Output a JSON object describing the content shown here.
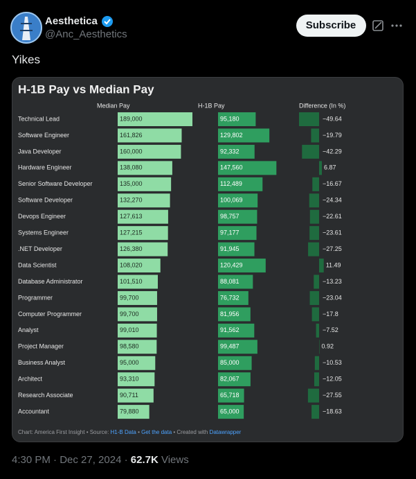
{
  "tweet": {
    "author_name": "Aesthetica",
    "handle": "@Anc_Aesthetics",
    "subscribe": "Subscribe",
    "text": "Yikes",
    "timestamp": "4:30 PM · Dec 27, 2024",
    "separator": " · ",
    "views": "62.7K",
    "views_label": " Views"
  },
  "chart_data": {
    "type": "bar",
    "title": "H-1B Pay vs Median Pay",
    "categories": [
      "Technical Lead",
      "Software Engineer",
      "Java Developer",
      "Hardware Engineer",
      "Senior Software Developer",
      "Software Developer",
      "Devops Engineer",
      "Systems Engineer",
      ".NET Developer",
      "Data Scientist",
      "Database Administrator",
      "Programmer",
      "Computer Programmer",
      "Analyst",
      "Project Manager",
      "Business Analyst",
      "Architect",
      "Research Associate",
      "Accountant"
    ],
    "series": [
      {
        "name": "Median Pay",
        "color": "#8fdca5",
        "values": [
          189000,
          161826,
          160000,
          138080,
          135000,
          132270,
          127613,
          127215,
          126380,
          108020,
          101510,
          99700,
          99700,
          99010,
          98580,
          95000,
          93310,
          90711,
          79880
        ],
        "value_labels": [
          "189,000",
          "161,826",
          "160,000",
          "138,080",
          "135,000",
          "132,270",
          "127,613",
          "127,215",
          "126,380",
          "108,020",
          "101,510",
          "99,700",
          "99,700",
          "99,010",
          "98,580",
          "95,000",
          "93,310",
          "90,711",
          "79,880"
        ]
      },
      {
        "name": "H-1B Pay",
        "color": "#2f9e5f",
        "values": [
          95180,
          129802,
          92332,
          147560,
          112489,
          100069,
          98757,
          97177,
          91945,
          120429,
          88081,
          76732,
          81956,
          91562,
          99487,
          85000,
          82067,
          65718,
          65000
        ],
        "value_labels": [
          "95,180",
          "129,802",
          "92,332",
          "147,560",
          "112,489",
          "100,069",
          "98,757",
          "97,177",
          "91,945",
          "120,429",
          "88,081",
          "76,732",
          "81,956",
          "91,562",
          "99,487",
          "85,000",
          "82,067",
          "65,718",
          "65,000"
        ]
      },
      {
        "name": "Difference (In %)",
        "color": "#1f6b3f",
        "values": [
          -49.64,
          -19.79,
          -42.29,
          6.87,
          -16.67,
          -24.34,
          -22.61,
          -23.61,
          -27.25,
          11.49,
          -13.23,
          -23.04,
          -17.8,
          -7.52,
          0.92,
          -10.53,
          -12.05,
          -27.55,
          -18.63
        ],
        "value_labels": [
          "−49.64",
          "−19.79",
          "−42.29",
          "6.87",
          "−16.67",
          "−24.34",
          "−22.61",
          "−23.61",
          "−27.25",
          "11.49",
          "−13.23",
          "−23.04",
          "−17.8",
          "−7.52",
          "0.92",
          "−10.53",
          "−12.05",
          "−27.55",
          "−18.63"
        ]
      }
    ],
    "footer": {
      "credit": "Chart: America First Insight • Source: ",
      "source_link": "H1-B Data",
      "sep": " • ",
      "data_link": "Get the data",
      "created": " • Created with ",
      "tool_link": "Datawrapper"
    }
  }
}
